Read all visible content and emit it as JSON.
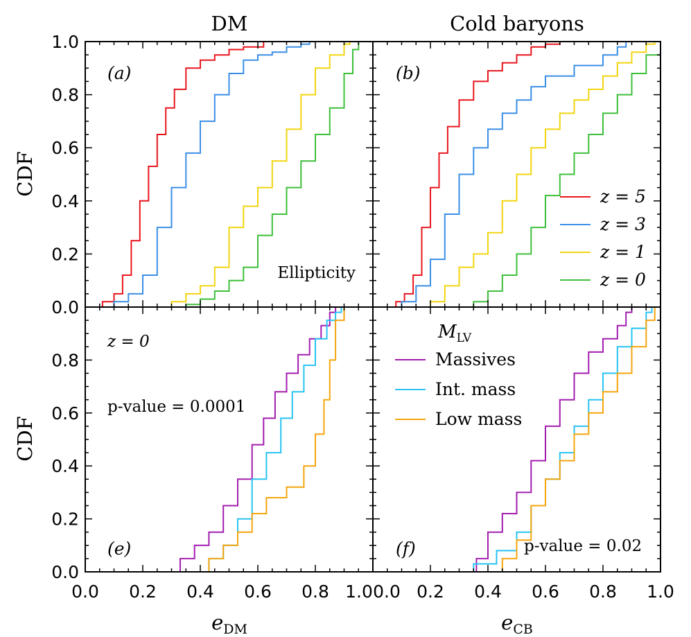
{
  "figure": {
    "col_titles": [
      "DM",
      "Cold baryons"
    ],
    "ylabel": "CDF",
    "xlabels": [
      {
        "base": "e",
        "sub": "DM"
      },
      {
        "base": "e",
        "sub": "CB"
      }
    ],
    "x_ticks": [
      "0.0",
      "0.2",
      "0.4",
      "0.6",
      "0.8",
      "1.0"
    ],
    "y_ticks_top": [
      "0.0",
      "0.2",
      "0.4",
      "0.6",
      "0.8",
      "1.0"
    ],
    "y_ticks_bottom": [
      "0.0",
      "0.2",
      "0.4",
      "0.6",
      "0.8"
    ],
    "panel_labels": [
      "(a)",
      "(b)",
      "(e)",
      "(f)"
    ],
    "annotations": {
      "ellipticity": "Ellipticity",
      "z_zero": "z = 0",
      "pvalue_e": "p-value = 0.0001",
      "pvalue_f": "p-value = 0.02"
    },
    "legend_redshift": [
      "z = 5",
      "z = 3",
      "z = 1",
      "z = 0"
    ],
    "legend_mass_title": {
      "base": "M",
      "sub": "LV"
    },
    "legend_mass": [
      "Massives",
      "Int. mass",
      "Low mass"
    ],
    "colors": {
      "z5": "#e8141c",
      "z3": "#3a8ee6",
      "z1": "#f2d50f",
      "z0": "#3dbf3a",
      "massive": "#a21caf",
      "intmass": "#27c3f3",
      "lowmass": "#f5a50c"
    }
  },
  "chart_data": [
    {
      "type": "line",
      "panel": "a",
      "title": "DM",
      "xlabel": "e_DM",
      "ylabel": "CDF",
      "xlim": [
        0,
        1
      ],
      "ylim": [
        0,
        1
      ],
      "series": [
        {
          "name": "z = 5",
          "color": "#e8141c",
          "x": [
            0.03,
            0.06,
            0.1,
            0.13,
            0.16,
            0.19,
            0.22,
            0.25,
            0.28,
            0.31,
            0.35,
            0.4,
            0.45,
            0.5,
            0.55,
            0.62,
            0.65
          ],
          "y": [
            0.0,
            0.02,
            0.05,
            0.12,
            0.25,
            0.4,
            0.53,
            0.65,
            0.75,
            0.82,
            0.9,
            0.93,
            0.95,
            0.97,
            0.98,
            1.0,
            1.0
          ]
        },
        {
          "name": "z = 3",
          "color": "#3a8ee6",
          "x": [
            0.05,
            0.1,
            0.15,
            0.2,
            0.25,
            0.3,
            0.35,
            0.4,
            0.45,
            0.5,
            0.55,
            0.6,
            0.65,
            0.7,
            0.75,
            0.78
          ],
          "y": [
            0.0,
            0.02,
            0.05,
            0.12,
            0.3,
            0.45,
            0.58,
            0.7,
            0.8,
            0.88,
            0.93,
            0.95,
            0.96,
            0.98,
            0.99,
            1.0
          ]
        },
        {
          "name": "z = 1",
          "color": "#f2d50f",
          "x": [
            0.2,
            0.3,
            0.35,
            0.4,
            0.45,
            0.5,
            0.55,
            0.6,
            0.65,
            0.7,
            0.75,
            0.8,
            0.85,
            0.9,
            0.92
          ],
          "y": [
            0.0,
            0.02,
            0.05,
            0.08,
            0.15,
            0.3,
            0.38,
            0.45,
            0.55,
            0.67,
            0.8,
            0.9,
            0.95,
            0.99,
            1.0
          ]
        },
        {
          "name": "z = 0",
          "color": "#3dbf3a",
          "x": [
            0.3,
            0.35,
            0.4,
            0.45,
            0.5,
            0.55,
            0.6,
            0.65,
            0.7,
            0.75,
            0.8,
            0.85,
            0.9,
            0.93,
            0.95
          ],
          "y": [
            0.0,
            0.01,
            0.03,
            0.06,
            0.1,
            0.15,
            0.27,
            0.35,
            0.45,
            0.55,
            0.65,
            0.75,
            0.88,
            0.97,
            1.0
          ]
        }
      ]
    },
    {
      "type": "line",
      "panel": "b",
      "title": "Cold baryons",
      "xlabel": "e_CB",
      "ylabel": "CDF",
      "xlim": [
        0,
        1
      ],
      "ylim": [
        0,
        1
      ],
      "series": [
        {
          "name": "z = 5",
          "color": "#e8141c",
          "x": [
            0.05,
            0.08,
            0.11,
            0.14,
            0.17,
            0.2,
            0.23,
            0.26,
            0.3,
            0.35,
            0.4,
            0.45,
            0.5,
            0.55,
            0.6,
            0.65,
            0.68
          ],
          "y": [
            0.0,
            0.02,
            0.05,
            0.12,
            0.3,
            0.45,
            0.58,
            0.68,
            0.78,
            0.85,
            0.89,
            0.92,
            0.95,
            0.98,
            0.99,
            1.0,
            1.0
          ]
        },
        {
          "name": "z = 3",
          "color": "#3a8ee6",
          "x": [
            0.05,
            0.1,
            0.15,
            0.2,
            0.25,
            0.3,
            0.35,
            0.4,
            0.45,
            0.5,
            0.55,
            0.6,
            0.7,
            0.8,
            0.85,
            0.88
          ],
          "y": [
            0.0,
            0.02,
            0.08,
            0.18,
            0.35,
            0.5,
            0.6,
            0.67,
            0.73,
            0.78,
            0.83,
            0.87,
            0.91,
            0.95,
            0.98,
            1.0
          ]
        },
        {
          "name": "z = 1",
          "color": "#f2d50f",
          "x": [
            0.15,
            0.2,
            0.25,
            0.3,
            0.35,
            0.4,
            0.45,
            0.5,
            0.55,
            0.6,
            0.65,
            0.7,
            0.75,
            0.8,
            0.85,
            0.9,
            0.95,
            0.98
          ],
          "y": [
            0.0,
            0.02,
            0.08,
            0.15,
            0.2,
            0.28,
            0.4,
            0.5,
            0.6,
            0.67,
            0.73,
            0.78,
            0.82,
            0.87,
            0.92,
            0.96,
            0.99,
            1.0
          ]
        },
        {
          "name": "z = 0",
          "color": "#3dbf3a",
          "x": [
            0.3,
            0.35,
            0.4,
            0.45,
            0.5,
            0.55,
            0.6,
            0.65,
            0.7,
            0.75,
            0.8,
            0.85,
            0.9,
            0.95,
            1.0
          ],
          "y": [
            0.0,
            0.02,
            0.06,
            0.12,
            0.2,
            0.3,
            0.42,
            0.5,
            0.58,
            0.65,
            0.73,
            0.8,
            0.88,
            0.95,
            1.0
          ]
        }
      ]
    },
    {
      "type": "line",
      "panel": "e",
      "xlabel": "e_DM",
      "ylabel": "CDF",
      "xlim": [
        0,
        1
      ],
      "ylim": [
        0,
        1
      ],
      "series": [
        {
          "name": "Massives",
          "color": "#a21caf",
          "x": [
            0.3,
            0.33,
            0.38,
            0.43,
            0.48,
            0.53,
            0.58,
            0.62,
            0.66,
            0.7,
            0.74,
            0.78,
            0.82,
            0.85,
            0.87
          ],
          "y": [
            0.0,
            0.05,
            0.1,
            0.15,
            0.25,
            0.35,
            0.48,
            0.58,
            0.68,
            0.75,
            0.82,
            0.88,
            0.93,
            0.98,
            1.0
          ]
        },
        {
          "name": "Int. mass",
          "color": "#27c3f3",
          "x": [
            0.33,
            0.43,
            0.48,
            0.53,
            0.58,
            0.63,
            0.68,
            0.72,
            0.76,
            0.8,
            0.84,
            0.87,
            0.89
          ],
          "y": [
            0.0,
            0.05,
            0.1,
            0.2,
            0.35,
            0.45,
            0.58,
            0.68,
            0.78,
            0.88,
            0.95,
            0.98,
            1.0
          ]
        },
        {
          "name": "Low mass",
          "color": "#f5a50c",
          "x": [
            0.3,
            0.43,
            0.48,
            0.53,
            0.58,
            0.63,
            0.7,
            0.76,
            0.8,
            0.83,
            0.85,
            0.87,
            0.9
          ],
          "y": [
            0.0,
            0.05,
            0.1,
            0.15,
            0.22,
            0.28,
            0.32,
            0.4,
            0.52,
            0.65,
            0.8,
            0.95,
            1.0
          ]
        }
      ]
    },
    {
      "type": "line",
      "panel": "f",
      "xlabel": "e_CB",
      "ylabel": "CDF",
      "xlim": [
        0,
        1
      ],
      "ylim": [
        0,
        1
      ],
      "series": [
        {
          "name": "Massives",
          "color": "#a21caf",
          "x": [
            0.33,
            0.36,
            0.4,
            0.45,
            0.5,
            0.55,
            0.6,
            0.65,
            0.7,
            0.75,
            0.8,
            0.85,
            0.88,
            0.9
          ],
          "y": [
            0.0,
            0.05,
            0.15,
            0.22,
            0.3,
            0.42,
            0.55,
            0.65,
            0.75,
            0.83,
            0.88,
            0.93,
            0.98,
            1.0
          ]
        },
        {
          "name": "Int. mass",
          "color": "#27c3f3",
          "x": [
            0.25,
            0.35,
            0.43,
            0.5,
            0.55,
            0.6,
            0.65,
            0.7,
            0.75,
            0.8,
            0.85,
            0.9,
            0.95,
            0.97
          ],
          "y": [
            0.0,
            0.03,
            0.08,
            0.15,
            0.25,
            0.35,
            0.45,
            0.55,
            0.65,
            0.75,
            0.85,
            0.92,
            0.98,
            1.0
          ]
        },
        {
          "name": "Low mass",
          "color": "#f5a50c",
          "x": [
            0.35,
            0.45,
            0.5,
            0.55,
            0.6,
            0.65,
            0.7,
            0.75,
            0.8,
            0.85,
            0.9,
            0.95,
            0.98
          ],
          "y": [
            0.0,
            0.05,
            0.12,
            0.25,
            0.35,
            0.42,
            0.52,
            0.6,
            0.68,
            0.75,
            0.85,
            0.95,
            1.0
          ]
        }
      ]
    }
  ]
}
